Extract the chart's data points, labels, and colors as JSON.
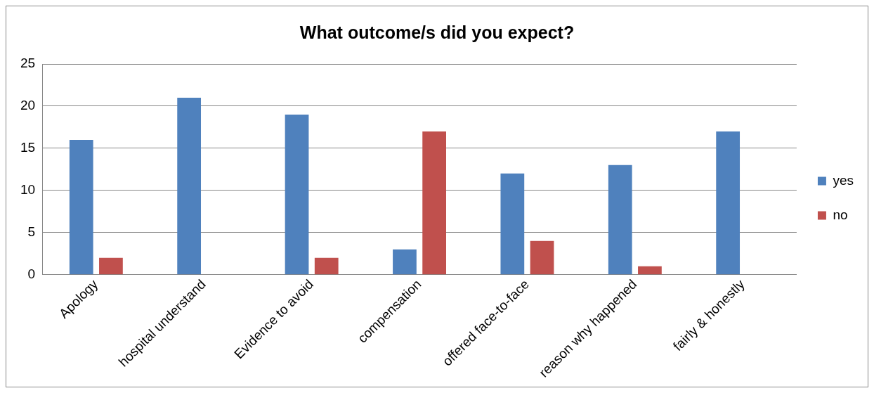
{
  "chart_data": {
    "type": "bar",
    "title": "What outcome/s did you expect?",
    "categories": [
      "Apology",
      "hospital understand",
      "Evidence to avoid",
      "compensation",
      "offered face-to-face",
      "reason why happened",
      "fairly & honestly"
    ],
    "series": [
      {
        "name": "yes",
        "color": "#4f81bd",
        "values": [
          16,
          21,
          19,
          3,
          12,
          13,
          17
        ]
      },
      {
        "name": "no",
        "color": "#c0504d",
        "values": [
          2,
          0,
          2,
          17,
          4,
          1,
          0
        ]
      }
    ],
    "ylim": [
      0,
      25
    ],
    "yticks": [
      0,
      5,
      10,
      15,
      20,
      25
    ],
    "grid": "y",
    "legend": "right"
  }
}
